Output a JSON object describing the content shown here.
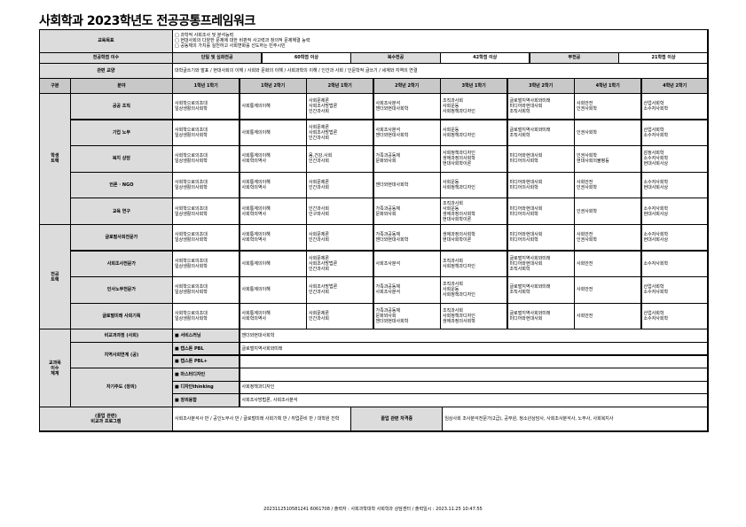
{
  "title": "사회학과 2023학년도 전공공통프레임워크",
  "goals": {
    "label": "교육목표",
    "items": [
      "□ 과학적 사회조사 및 분석능력",
      "□ 현대사회의 다양한 문제에 대한 비판적 사고력과 창의적 문제해결 능력",
      "□ 공동체의 가치를 실천하고 사회변화를 선도하는 민주시민"
    ]
  },
  "credits": {
    "label": "전공학점 이수",
    "single_label": "단일 및 심화전공",
    "single_value": "60학점 이상",
    "double_label": "복수전공",
    "double_value": "42학점 이상",
    "minor_label": "부전공",
    "minor_value": "21학점 이상"
  },
  "liberal": {
    "label": "관련 교양",
    "value": "대학글쓰기와 발표 / 현대사회의 이해 / 사회와 문화의 이해 / 사회과학의 이해 / 인간과 사회 / 인문학적 글쓰기 / 세계와 지역의 연결"
  },
  "header": [
    "구분",
    "분야",
    "1학년 1학기",
    "1학년 2학기",
    "2학년 1학기",
    "2학년 2학기",
    "3학년 1학기",
    "3학년 2학기",
    "4학년 1학기",
    "4학년 2학기"
  ],
  "groups": [
    {
      "label": "학생\n트랙",
      "tracks": [
        {
          "name": "공공 조직",
          "cells": [
            "사회학으로의초대\n일상생활의사회학",
            "사회통계의이해",
            "사회문제론\n사회조사방법론\n인간과사회",
            "사회조사분석\n젠더와현대사회학",
            "조직과사회\n사회운동\n사회정책과디자인",
            "글로벌지역사회와미래\n미디어와현대사회\n조직사회학",
            "사회안전\n인권사회학",
            "산업사회학\n소수자사회학"
          ]
        },
        {
          "name": "기업 노무",
          "cells": [
            "사회학으로의초대\n일상생활의사회학",
            "사회통계의이해",
            "사회문제론\n사회조사방법론\n인간과사회",
            "사회조사분석\n젠더와현대사회학",
            "사회운동\n사회정책과디자인",
            "글로벌지역사회와미래\n조직사회학",
            "인권사회학",
            "산업사회학\n소수자사회학"
          ]
        },
        {
          "name": "복지 상담",
          "cells": [
            "사회학으로의초대\n일상생활의사회학",
            "사회통계의이해\n사회학의역사",
            "몸,건강,사회\n인간과사회",
            "가족과공동체\n문화와사회",
            "사회정책과디자인\n생애과정의사회학\n현대사회학이론",
            "미디어와현대사회\n미디어의사회학",
            "인권사회학\n현대사회의불평등",
            "감정사회학\n소수자사회학\n현대사회사상"
          ]
        },
        {
          "name": "언론 · NGO",
          "cells": [
            "사회학으로의초대\n일상생활의사회학",
            "사회통계의이해\n사회학의역사",
            "사회문제론\n인간과사회",
            "젠더와현대사회학",
            "사회운동\n사회정책과디자인",
            "미디어와현대사회\n미디어의사회학",
            "사회안전\n인권사회학",
            "소수자사회학\n현대사회사상"
          ]
        },
        {
          "name": "교육 연구",
          "cells": [
            "사회학으로의초대\n일상생활의사회학",
            "사회통계의이해\n사회학의역사",
            "인간과사회\n인구와사회",
            "가족과공동체\n문화와사회",
            "조직과사회\n사회운동\n생애과정의사회학\n현대사회학이론",
            "미디어와현대사회\n미디어의사회학",
            "인권사회학",
            "소수자사회학\n현대사회사상"
          ]
        }
      ]
    },
    {
      "label": "전공\n트랙",
      "tracks": [
        {
          "name": "글로벌사회전문가",
          "cells": [
            "사회학으로의초대\n일상생활의사회학",
            "사회통계의이해\n사회학의역사",
            "사회문제론\n인간과사회",
            "가족과공동체\n젠더와현대사회학",
            "생애과정의사회학\n현대사회학이론",
            "미디어와현대사회\n미디어의사회학",
            "사회안전\n인권사회학",
            "소수자사회학\n현대사회사상"
          ]
        },
        {
          "name": "사회조사전문가",
          "cells": [
            "사회학으로의초대\n일상생활의사회학",
            "사회통계의이해",
            "사회문제론\n사회조사방법론\n인간과사회",
            "사회조사분석",
            "조직과사회\n사회정책과디자인",
            "글로벌지역사회와미래\n미디어와현대사회\n조직사회학",
            "사회안전",
            "소수자사회학"
          ]
        },
        {
          "name": "인사노무전문가",
          "cells": [
            "사회학으로의초대\n일상생활의사회학",
            "사회통계의이해",
            "사회조사방법론\n인간과사회",
            "가족과공동체\n사회조사분석",
            "조직과사회\n사회운동\n사회정책과디자인",
            "글로벌지역사회와미래\n조직사회학",
            "사회안전",
            "산업사회학\n소수자사회학"
          ]
        },
        {
          "name": "글로벌미래 사회기획",
          "cells": [
            "사회학으로의초대\n일상생활의사회학",
            "사회통계의이해\n사회학의역사",
            "사회문제론\n인간과사회",
            "가족과공동체\n문화와사회\n젠더와현대사회학",
            "조직과사회\n사회정책과디자인\n생애과정의사회학",
            "글로벌지역사회와미래\n미디어와현대사회",
            "사회안전",
            "산업사회학\n소수자사회학"
          ]
        }
      ]
    }
  ],
  "extra": {
    "label": "교과목\n이수\n체계",
    "sections": [
      {
        "name": "비교과과정 (사회)",
        "items": [
          {
            "label": "■ 서비스러닝",
            "value": "젠더와현대사회학"
          }
        ]
      },
      {
        "name": "지역사회연계 (공)",
        "items": [
          {
            "label": "■ 캡스톤 PBL",
            "value": "글로벌지역사회와미래"
          },
          {
            "label": "■ 캡스톤 PBL+",
            "value": ""
          }
        ]
      },
      {
        "name": "자기주도 (창의)",
        "items": [
          {
            "label": "■ 마스터디자인",
            "value": ""
          },
          {
            "label": "■ 디자인thinking",
            "value": "사회정책과디자인"
          },
          {
            "label": "■ 창의융합",
            "value": "사회조사방법론, 사회조사분석"
          }
        ]
      }
    ]
  },
  "final": {
    "label": "(졸업 관련)\n비교과 프로그램",
    "value": "사회조사분석사 반 / 공인노무사 반 / 글로벌미래 사회기획 반 / 취업준비 반 / 대학원 진학",
    "cert_label": "졸업 관련 자격증",
    "cert_value": "임상사회 조사분석전문가(2급), 공무원, 청소년상담사, 사회조사분석사, 노무사, 사회복지사"
  },
  "footer": "2023112510581241 6061708 / 출력자 : 사회과학대학 사회학과 상담센터 / 출력일시 : 2023.11.25 10:47:55"
}
